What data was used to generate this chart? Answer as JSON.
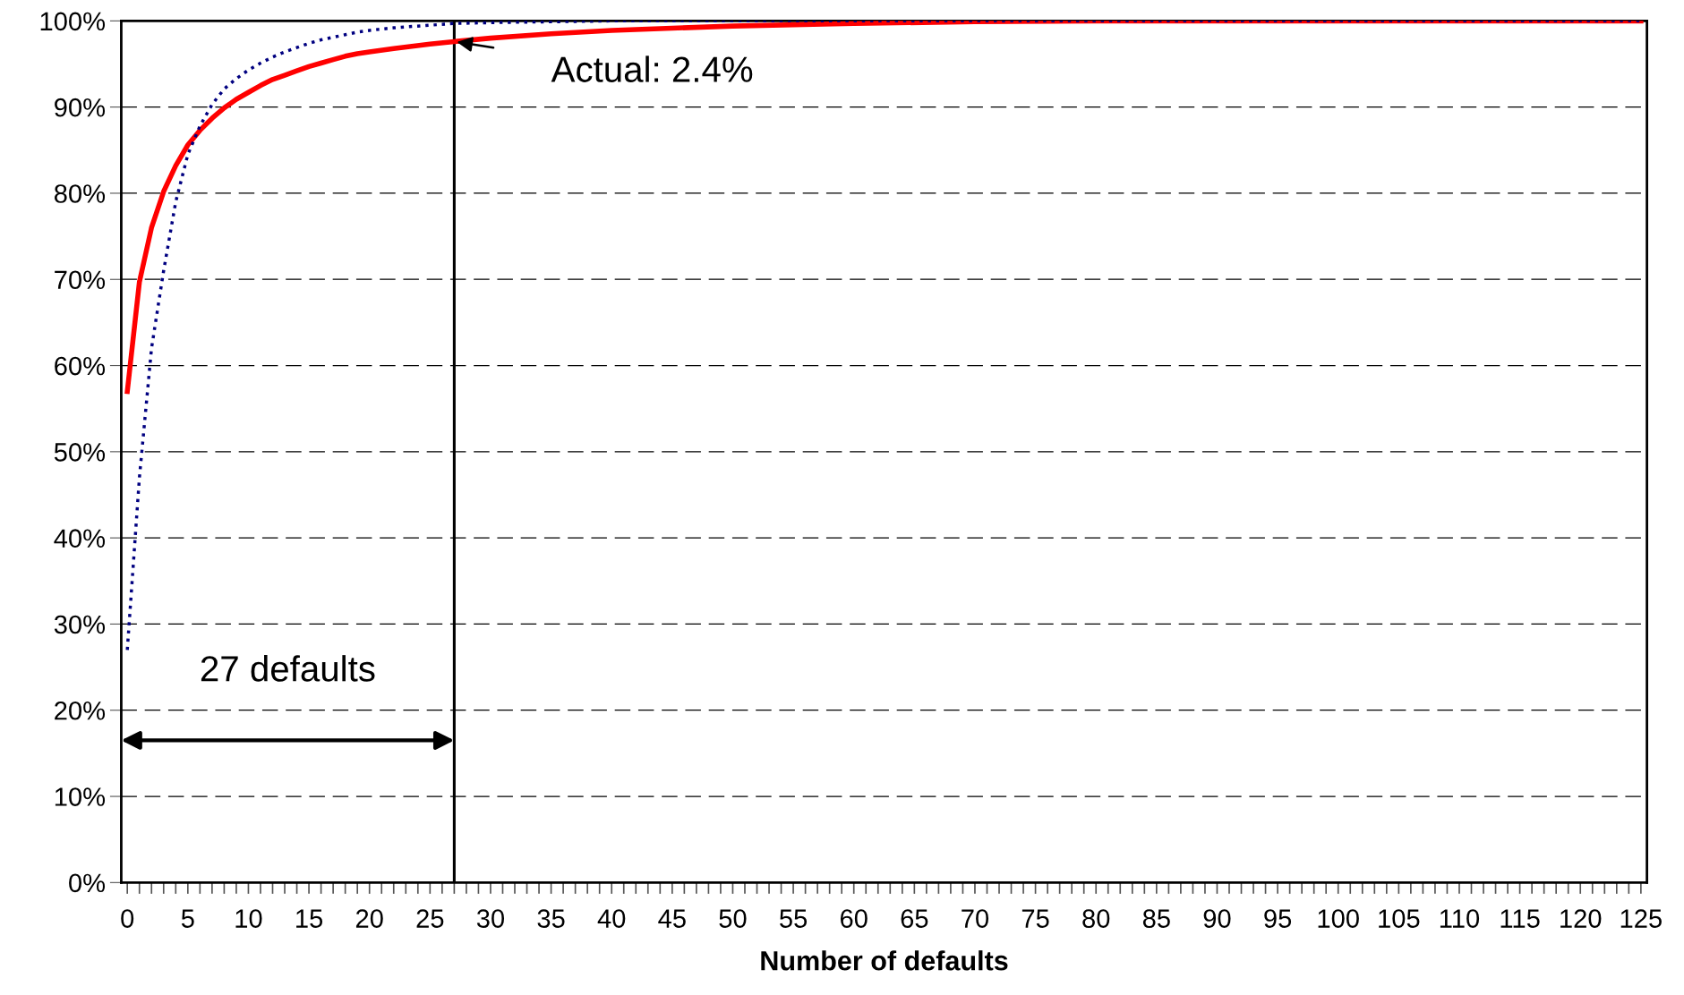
{
  "chart_data": {
    "type": "line",
    "xlabel": "Number of defaults",
    "xlim": [
      -0.5,
      125.5
    ],
    "xticks": [
      0,
      {
        "value": 1,
        "label": null
      },
      {
        "value": 2,
        "label": null
      },
      {
        "value": 3,
        "label": null
      },
      {
        "value": 4,
        "label": null
      },
      5,
      {
        "value": 6,
        "label": null
      },
      {
        "value": 7,
        "label": null
      },
      {
        "value": 8,
        "label": null
      },
      {
        "value": 9,
        "label": null
      },
      10,
      {
        "value": 11,
        "label": null
      },
      {
        "value": 12,
        "label": null
      },
      {
        "value": 13,
        "label": null
      },
      {
        "value": 14,
        "label": null
      },
      15,
      {
        "value": 16,
        "label": null
      },
      {
        "value": 17,
        "label": null
      },
      {
        "value": 18,
        "label": null
      },
      {
        "value": 19,
        "label": null
      },
      20,
      {
        "value": 21,
        "label": null
      },
      {
        "value": 22,
        "label": null
      },
      {
        "value": 23,
        "label": null
      },
      {
        "value": 24,
        "label": null
      },
      25,
      {
        "value": 26,
        "label": null
      },
      {
        "value": 27,
        "label": null
      },
      {
        "value": 28,
        "label": null
      },
      {
        "value": 29,
        "label": null
      },
      30,
      {
        "value": 31,
        "label": null
      },
      {
        "value": 32,
        "label": null
      },
      {
        "value": 33,
        "label": null
      },
      {
        "value": 34,
        "label": null
      },
      35,
      {
        "value": 36,
        "label": null
      },
      {
        "value": 37,
        "label": null
      },
      {
        "value": 38,
        "label": null
      },
      {
        "value": 39,
        "label": null
      },
      40,
      {
        "value": 41,
        "label": null
      },
      {
        "value": 42,
        "label": null
      },
      {
        "value": 43,
        "label": null
      },
      {
        "value": 44,
        "label": null
      },
      45,
      {
        "value": 46,
        "label": null
      },
      {
        "value": 47,
        "label": null
      },
      {
        "value": 48,
        "label": null
      },
      {
        "value": 49,
        "label": null
      },
      50,
      {
        "value": 51,
        "label": null
      },
      {
        "value": 52,
        "label": null
      },
      {
        "value": 53,
        "label": null
      },
      {
        "value": 54,
        "label": null
      },
      55,
      {
        "value": 56,
        "label": null
      },
      {
        "value": 57,
        "label": null
      },
      {
        "value": 58,
        "label": null
      },
      {
        "value": 59,
        "label": null
      },
      60,
      {
        "value": 61,
        "label": null
      },
      {
        "value": 62,
        "label": null
      },
      {
        "value": 63,
        "label": null
      },
      {
        "value": 64,
        "label": null
      },
      65,
      {
        "value": 66,
        "label": null
      },
      {
        "value": 67,
        "label": null
      },
      {
        "value": 68,
        "label": null
      },
      {
        "value": 69,
        "label": null
      },
      70,
      {
        "value": 71,
        "label": null
      },
      {
        "value": 72,
        "label": null
      },
      {
        "value": 73,
        "label": null
      },
      {
        "value": 74,
        "label": null
      },
      75,
      {
        "value": 76,
        "label": null
      },
      {
        "value": 77,
        "label": null
      },
      {
        "value": 78,
        "label": null
      },
      {
        "value": 79,
        "label": null
      },
      80,
      {
        "value": 81,
        "label": null
      },
      {
        "value": 82,
        "label": null
      },
      {
        "value": 83,
        "label": null
      },
      {
        "value": 84,
        "label": null
      },
      85,
      {
        "value": 86,
        "label": null
      },
      {
        "value": 87,
        "label": null
      },
      {
        "value": 88,
        "label": null
      },
      {
        "value": 89,
        "label": null
      },
      90,
      {
        "value": 91,
        "label": null
      },
      {
        "value": 92,
        "label": null
      },
      {
        "value": 93,
        "label": null
      },
      {
        "value": 94,
        "label": null
      },
      95,
      {
        "value": 96,
        "label": null
      },
      {
        "value": 97,
        "label": null
      },
      {
        "value": 98,
        "label": null
      },
      {
        "value": 99,
        "label": null
      },
      100,
      {
        "value": 101,
        "label": null
      },
      {
        "value": 102,
        "label": null
      },
      {
        "value": 103,
        "label": null
      },
      {
        "value": 104,
        "label": null
      },
      105,
      {
        "value": 106,
        "label": null
      },
      {
        "value": 107,
        "label": null
      },
      {
        "value": 108,
        "label": null
      },
      {
        "value": 109,
        "label": null
      },
      110,
      {
        "value": 111,
        "label": null
      },
      {
        "value": 112,
        "label": null
      },
      {
        "value": 113,
        "label": null
      },
      {
        "value": 114,
        "label": null
      },
      115,
      {
        "value": 116,
        "label": null
      },
      {
        "value": 117,
        "label": null
      },
      {
        "value": 118,
        "label": null
      },
      {
        "value": 119,
        "label": null
      },
      120,
      {
        "value": 121,
        "label": null
      },
      {
        "value": 122,
        "label": null
      },
      {
        "value": 123,
        "label": null
      },
      {
        "value": 124,
        "label": null
      },
      125
    ],
    "ylim": [
      0,
      100
    ],
    "yticks": [
      {
        "value": 0,
        "label": "0%"
      },
      {
        "value": 10,
        "label": "10%"
      },
      {
        "value": 20,
        "label": "20%"
      },
      {
        "value": 30,
        "label": "30%"
      },
      {
        "value": 40,
        "label": "40%"
      },
      {
        "value": 50,
        "label": "50%"
      },
      {
        "value": 60,
        "label": "60%"
      },
      {
        "value": 70,
        "label": "70%"
      },
      {
        "value": 80,
        "label": "80%"
      },
      {
        "value": 90,
        "label": "90%"
      },
      {
        "value": 100,
        "label": "100%"
      }
    ],
    "grid": "y",
    "marker": "none",
    "series": [
      {
        "color": "#ff0000",
        "line_style": "solid",
        "x": [
          0,
          1,
          2,
          3,
          4,
          5,
          6,
          7,
          8,
          9,
          10,
          11,
          12,
          13,
          14,
          15,
          16,
          17,
          18,
          19,
          20,
          22,
          25,
          27,
          30,
          35,
          40,
          50,
          60,
          70,
          80,
          90,
          100,
          110,
          120,
          125
        ],
        "values": [
          57,
          69.7,
          76,
          80.2,
          83.2,
          85.6,
          87.3,
          88.7,
          89.9,
          90.9,
          91.7,
          92.5,
          93.2,
          93.7,
          94.2,
          94.7,
          95.1,
          95.5,
          95.9,
          96.2,
          96.4,
          96.8,
          97.3,
          97.6,
          98,
          98.5,
          98.9,
          99.4,
          99.7,
          99.9,
          100,
          100,
          100,
          100,
          100,
          100
        ]
      },
      {
        "color": "#000080",
        "line_style": "dotted",
        "x": [
          0,
          1,
          2,
          3,
          4,
          5,
          6,
          7,
          8,
          9,
          10,
          11,
          12,
          13,
          14,
          15,
          16,
          17,
          18,
          19,
          20,
          22,
          25,
          27,
          30,
          35,
          40,
          50,
          60,
          70,
          80,
          90,
          100,
          110,
          120,
          125
        ],
        "values": [
          27,
          47,
          62,
          71,
          79,
          84.5,
          87.8,
          90.3,
          92.1,
          93.3,
          94.3,
          95.1,
          95.8,
          96.4,
          96.9,
          97.4,
          97.8,
          98.1,
          98.4,
          98.7,
          98.9,
          99.2,
          99.5,
          99.7,
          99.8,
          99.9,
          100,
          100,
          100,
          100,
          100,
          100,
          100,
          100,
          100,
          100
        ]
      }
    ],
    "ref_lines": [
      {
        "axis": "x",
        "value": 27,
        "color": "#000000",
        "line_style": "solid"
      }
    ],
    "annotations": [
      {
        "text": "Actual: 2.4%",
        "x": 27,
        "y": 97.6
      },
      "27 defaults"
    ]
  }
}
